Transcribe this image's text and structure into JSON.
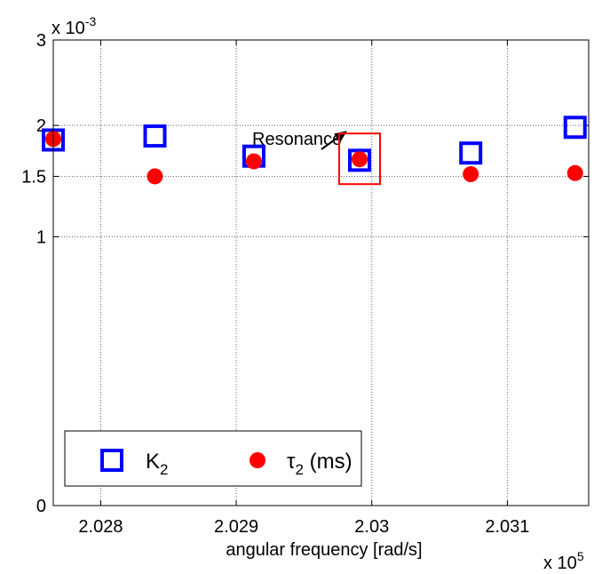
{
  "chart_data": {
    "type": "scatter",
    "xlabel": "angular frequency [rad/s]",
    "x_multiplier_label": {
      "base": "x 10",
      "exp": "5"
    },
    "y_multiplier_label": {
      "base": "x 10",
      "exp": "-3"
    },
    "xlim": [
      202765,
      203160
    ],
    "ylim": [
      0,
      3
    ],
    "y_scale": "sqrt",
    "x_ticks": [
      202800,
      202900,
      203000,
      203100
    ],
    "x_tick_labels": [
      "2.028",
      "2.029",
      "2.03",
      "2.031"
    ],
    "y_ticks": [
      0,
      1,
      1.5,
      2,
      3
    ],
    "y_tick_labels": [
      "0",
      "1",
      "1.5",
      "2",
      "3"
    ],
    "grid": true,
    "legend_position": "bottom-left",
    "series": [
      {
        "name": "K",
        "name_subscript": "2",
        "marker": "square",
        "color": "#0000ff",
        "x": [
          202765,
          202840,
          202913,
          202991,
          203073,
          203150
        ],
        "y": [
          1.85,
          1.89,
          1.69,
          1.65,
          1.72,
          1.98
        ]
      },
      {
        "name": "τ",
        "name_subscript": "2",
        "name_suffix": " (ms)",
        "marker": "circle",
        "color": "#ff0000",
        "x": [
          202765,
          202840,
          202913,
          202991,
          203073,
          203150
        ],
        "y": [
          1.86,
          1.5,
          1.64,
          1.66,
          1.52,
          1.53
        ]
      }
    ],
    "annotation": {
      "text": "Resonance",
      "x": 202991,
      "y": 1.66,
      "box_color": "#ff0000"
    }
  }
}
